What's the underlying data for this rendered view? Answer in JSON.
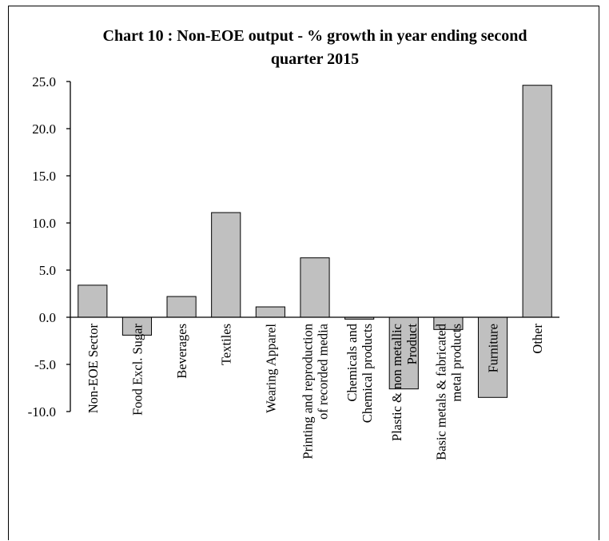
{
  "chart_data": {
    "type": "bar",
    "title_lines": [
      "Chart 10 : Non-EOE output - % growth in year ending second",
      "quarter 2015"
    ],
    "categories": [
      [
        "Non-EOE Sector"
      ],
      [
        "Food Excl. Sugar"
      ],
      [
        "Beverages"
      ],
      [
        "Textiles"
      ],
      [
        "Wearing Apparel"
      ],
      [
        "Printing and reproduction",
        "of recorded media"
      ],
      [
        "Chemicals and",
        "Chemical products"
      ],
      [
        "Plastic & non metallic",
        "Product"
      ],
      [
        "Basic metals & fabricated",
        "metal products"
      ],
      [
        "Furniture"
      ],
      [
        "Other"
      ]
    ],
    "values": [
      3.4,
      -1.9,
      2.2,
      11.1,
      1.1,
      6.3,
      -0.2,
      -7.6,
      -1.3,
      -8.5,
      24.6
    ],
    "ylim": [
      -10,
      25
    ],
    "yticks": [
      "25.0",
      "20.0",
      "15.0",
      "10.0",
      "5.0",
      "0.0",
      "-5.0",
      "-10.0"
    ],
    "ytick_values": [
      25,
      20,
      15,
      10,
      5,
      0,
      -5,
      -10
    ],
    "xlabel": "",
    "ylabel": "",
    "grid": false,
    "legend": "none",
    "bar_color": "#c0c0c0"
  }
}
